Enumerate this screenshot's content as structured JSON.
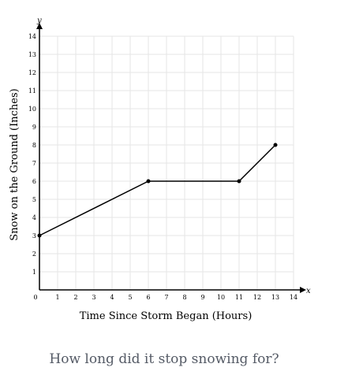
{
  "chart_data": {
    "type": "line",
    "xlabel": "Time Since Storm Began (Hours)",
    "ylabel": "Snow on the Ground (Inches)",
    "x_axis_letter": "x",
    "y_axis_letter": "y",
    "xlim": [
      0,
      14
    ],
    "ylim": [
      0,
      14
    ],
    "x_ticks": [
      0,
      1,
      2,
      3,
      4,
      5,
      6,
      7,
      8,
      9,
      10,
      11,
      12,
      13,
      14
    ],
    "y_ticks": [
      1,
      2,
      3,
      4,
      5,
      6,
      7,
      8,
      9,
      10,
      11,
      12,
      13,
      14
    ],
    "grid": true,
    "series": [
      {
        "points": [
          {
            "x": 0,
            "y": 3
          },
          {
            "x": 6,
            "y": 6
          },
          {
            "x": 11,
            "y": 6
          },
          {
            "x": 13,
            "y": 8
          }
        ]
      }
    ]
  },
  "question": "How long did it stop snowing for?",
  "colors": {
    "line": "#000000",
    "grid": "#e6e6e6",
    "axis": "#000000",
    "question_text": "#555b66"
  }
}
